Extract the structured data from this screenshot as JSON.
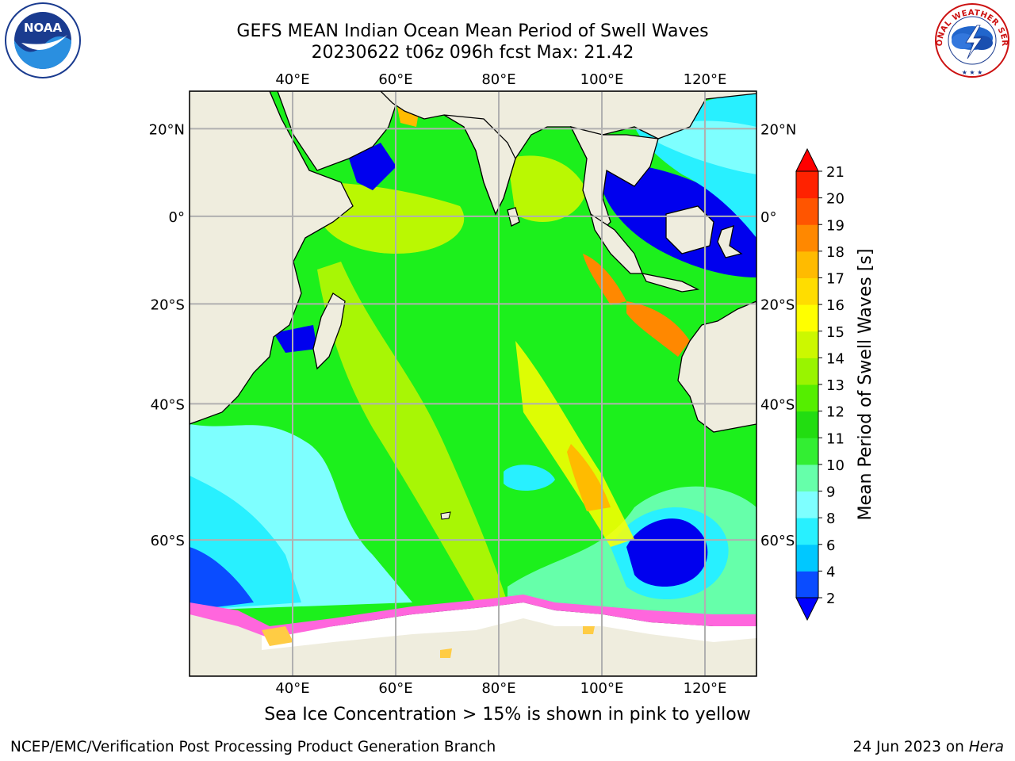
{
  "header": {
    "title_line1": "GEFS MEAN Indian Ocean Mean Period of Swell Waves",
    "title_line2": "20230622 t06z 096h fcst   Max: 21.42"
  },
  "map": {
    "lon_ticks": [
      "40°E",
      "60°E",
      "80°E",
      "100°E",
      "120°E"
    ],
    "lat_ticks": [
      "20°N",
      "0°",
      "20°S",
      "40°S",
      "60°S"
    ],
    "lon_values": [
      40,
      60,
      80,
      100,
      120
    ],
    "lat_values": [
      20,
      0,
      -20,
      -40,
      -60
    ],
    "extent": {
      "lon_min": 20,
      "lon_max": 130,
      "lat_min": -72.5,
      "lat_max": 28
    },
    "land_color": "#efedde",
    "ocean_base_color": "#1cf01c",
    "gridline_color": "#b0b0b0"
  },
  "colorbar": {
    "label": "Mean Period of Swell Waves [s]",
    "ticks": [
      "2",
      "4",
      "6",
      "8",
      "9",
      "10",
      "11",
      "12",
      "13",
      "14",
      "15",
      "16",
      "17",
      "18",
      "19",
      "20",
      "21"
    ],
    "colors": [
      "#0a4cff",
      "#00c8ff",
      "#28f0ff",
      "#7effff",
      "#66ffaa",
      "#33ee33",
      "#22dd11",
      "#55ee00",
      "#99f400",
      "#ccf800",
      "#ffff00",
      "#ffdd00",
      "#ffbb00",
      "#ff8800",
      "#ff5500",
      "#ff2200"
    ],
    "under_color": "#0000ff",
    "over_color": "#ff0000"
  },
  "footer": {
    "caption": "Sea Ice Concentration > 15% is shown in pink to yellow",
    "credit": "NCEP/EMC/Verification Post Processing Product Generation Branch",
    "date_prefix": "24 Jun 2023 on ",
    "host": "Hera"
  },
  "logos": {
    "noaa_text": "NOAA",
    "nws_text": "NATIONAL WEATHER SERVICE"
  }
}
